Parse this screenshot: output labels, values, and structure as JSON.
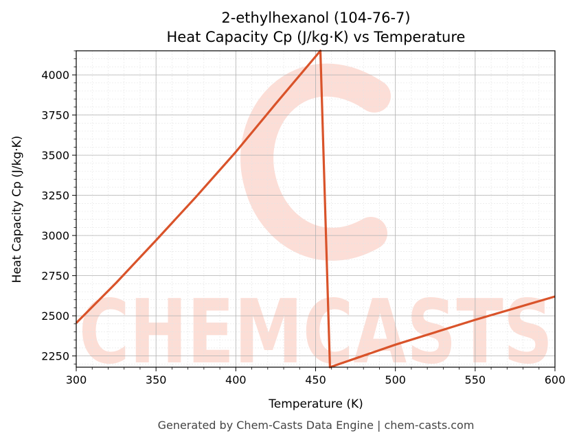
{
  "chart_data": {
    "type": "line",
    "title": "2-ethylhexanol (104-76-7)",
    "subtitle": "Heat Capacity Cp (J/kg·K) vs Temperature",
    "xlabel": "Temperature (K)",
    "ylabel": "Heat Capacity Cp (J/kg·K)",
    "xlim": [
      300,
      600
    ],
    "ylim": [
      2180,
      4150
    ],
    "x_ticks": [
      "300",
      "350",
      "400",
      "450",
      "500",
      "550",
      "600"
    ],
    "y_ticks": [
      "2250",
      "2500",
      "2750",
      "3000",
      "3250",
      "3500",
      "3750",
      "4000"
    ],
    "grid": true,
    "line_color": "#d9532a",
    "series": [
      {
        "values": [
          {
            "x": 300,
            "y": 2455
          },
          {
            "x": 325,
            "y": 2705
          },
          {
            "x": 350,
            "y": 2970
          },
          {
            "x": 375,
            "y": 3240
          },
          {
            "x": 400,
            "y": 3520
          },
          {
            "x": 425,
            "y": 3820
          },
          {
            "x": 453,
            "y": 4150
          },
          {
            "x": 459,
            "y": 2180
          },
          {
            "x": 500,
            "y": 2320
          },
          {
            "x": 550,
            "y": 2475
          },
          {
            "x": 600,
            "y": 2620
          }
        ]
      }
    ]
  },
  "watermark": {
    "text": "CHEMCASTS",
    "color": "#fbd3c9"
  },
  "footer": "Generated by Chem-Casts Data Engine | chem-casts.com"
}
